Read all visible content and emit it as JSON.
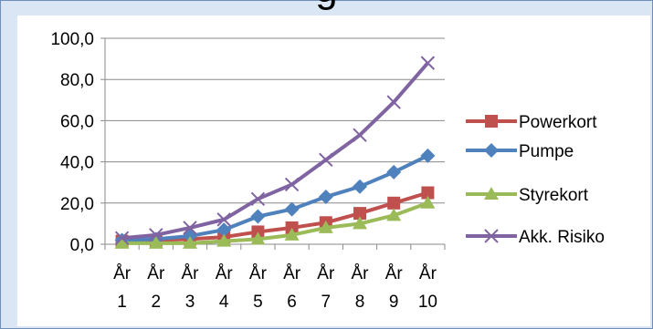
{
  "title_fragment": "g",
  "chart_data": {
    "type": "line",
    "title": "",
    "xlabel": "",
    "ylabel": "",
    "ylim": [
      0,
      100
    ],
    "yticks": [
      "0,0",
      "20,0",
      "40,0",
      "60,0",
      "80,0",
      "100,0"
    ],
    "categories": [
      [
        "År",
        "1"
      ],
      [
        "År",
        "2"
      ],
      [
        "År",
        "3"
      ],
      [
        "År",
        "4"
      ],
      [
        "År",
        "5"
      ],
      [
        "År",
        "6"
      ],
      [
        "År",
        "7"
      ],
      [
        "År",
        "8"
      ],
      [
        "År",
        "9"
      ],
      [
        "År",
        "10"
      ]
    ],
    "grid": true,
    "legend_position": "right",
    "series": [
      {
        "name": "Powerkort",
        "color": "#c0504d",
        "marker": "square",
        "values": [
          1.5,
          2,
          2.5,
          3.5,
          6,
          8,
          10.5,
          15,
          20,
          25
        ]
      },
      {
        "name": "Pumpe",
        "color": "#4f81bd",
        "marker": "diamond",
        "values": [
          2,
          2.5,
          4,
          7,
          13.5,
          17,
          23,
          28,
          35,
          43
        ]
      },
      {
        "name": "Styrekort",
        "color": "#9bbb59",
        "marker": "triangle",
        "values": [
          0.5,
          0.5,
          0.5,
          1.5,
          2.5,
          4.5,
          8,
          10,
          14,
          20
        ]
      },
      {
        "name": "Akk. Risiko",
        "color": "#8064a2",
        "marker": "x",
        "values": [
          3,
          4.5,
          8,
          12,
          22,
          29,
          41,
          53,
          69,
          88
        ]
      }
    ]
  }
}
